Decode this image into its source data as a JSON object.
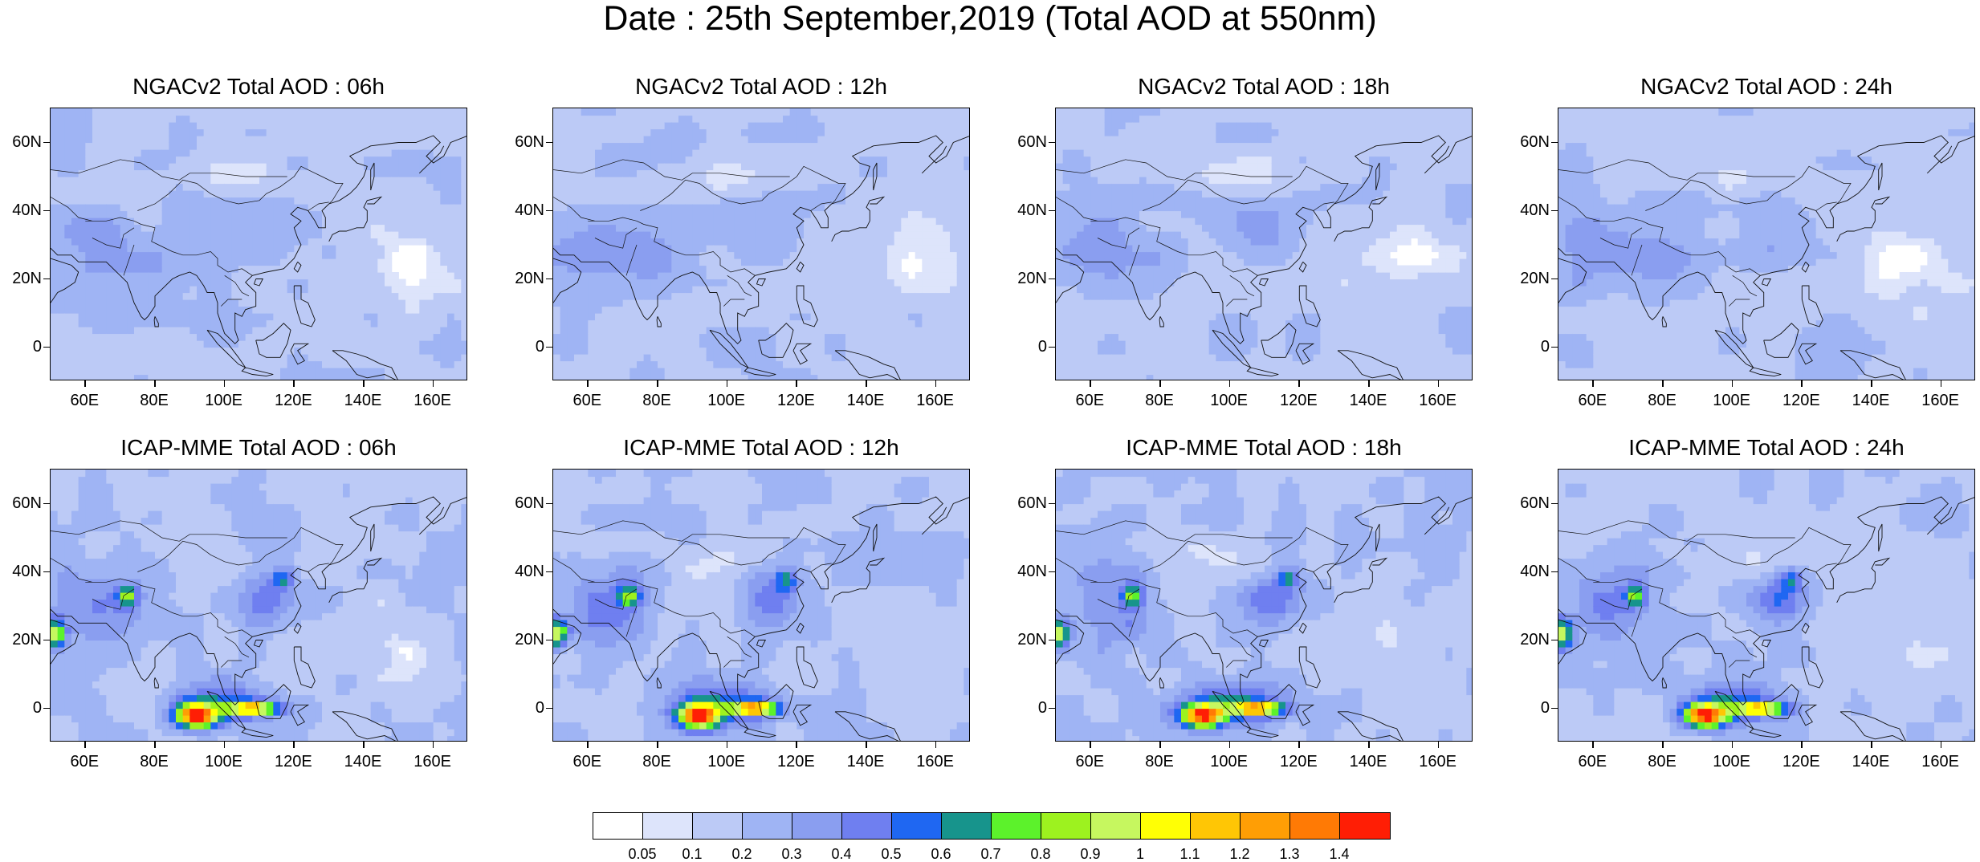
{
  "title": "Date : 25th September,2019 (Total AOD at 550nm)",
  "panels": [
    {
      "title": "NGACv2 Total AOD : 06h",
      "model": "NGACv2",
      "hour": 6
    },
    {
      "title": "NGACv2 Total AOD : 12h",
      "model": "NGACv2",
      "hour": 12
    },
    {
      "title": "NGACv2 Total AOD : 18h",
      "model": "NGACv2",
      "hour": 18
    },
    {
      "title": "NGACv2 Total AOD : 24h",
      "model": "NGACv2",
      "hour": 24
    },
    {
      "title": "ICAP-MME Total AOD : 06h",
      "model": "ICAP-MME",
      "hour": 6
    },
    {
      "title": "ICAP-MME Total AOD : 12h",
      "model": "ICAP-MME",
      "hour": 12
    },
    {
      "title": "ICAP-MME Total AOD : 18h",
      "model": "ICAP-MME",
      "hour": 18
    },
    {
      "title": "ICAP-MME Total AOD : 24h",
      "model": "ICAP-MME",
      "hour": 24
    }
  ],
  "map": {
    "lon_range": [
      50,
      170
    ],
    "lat_range": [
      -10,
      70
    ],
    "lon_ticks": [
      {
        "value": 60,
        "label": "60E"
      },
      {
        "value": 80,
        "label": "80E"
      },
      {
        "value": 100,
        "label": "100E"
      },
      {
        "value": 120,
        "label": "120E"
      },
      {
        "value": 140,
        "label": "140E"
      },
      {
        "value": 160,
        "label": "160E"
      }
    ],
    "lat_ticks": [
      {
        "value": 60,
        "label": "60N"
      },
      {
        "value": 40,
        "label": "40N"
      },
      {
        "value": 20,
        "label": "20N"
      },
      {
        "value": 0,
        "label": "0"
      }
    ]
  },
  "colorbar": {
    "labels": [
      "0.05",
      "0.1",
      "0.2",
      "0.3",
      "0.4",
      "0.5",
      "0.6",
      "0.7",
      "0.8",
      "0.9",
      "1",
      "1.1",
      "1.2",
      "1.3",
      "1.4"
    ],
    "colors": [
      "#ffffff",
      "#dde4fb",
      "#bccaf6",
      "#9fb4f4",
      "#8a9ef0",
      "#6f7ff0",
      "#1f67f2",
      "#17948c",
      "#5cf22b",
      "#9df21f",
      "#c6f75f",
      "#ffff05",
      "#ffc605",
      "#ff9e05",
      "#ff7a05",
      "#ff1e05"
    ]
  }
}
